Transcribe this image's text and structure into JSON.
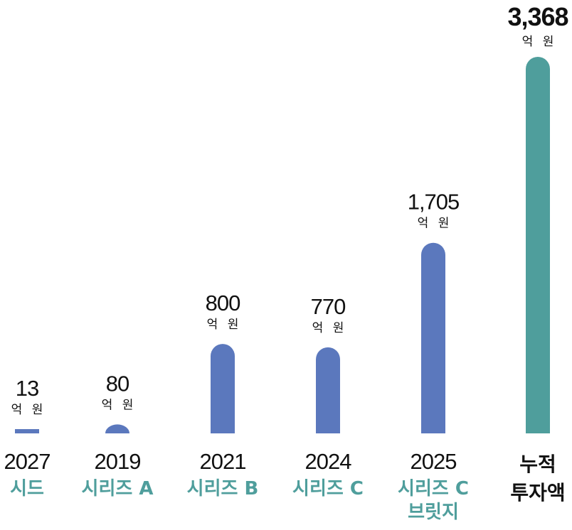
{
  "chart_data": {
    "type": "bar",
    "unit": "억 원",
    "categories": [
      {
        "year": "2027",
        "label": [
          "시드"
        ],
        "value": 13,
        "value_label": "13"
      },
      {
        "year": "2019",
        "label": [
          "시리즈 A"
        ],
        "value": 80,
        "value_label": "80"
      },
      {
        "year": "2021",
        "label": [
          "시리즈 B"
        ],
        "value": 800,
        "value_label": "800"
      },
      {
        "year": "2024",
        "label": [
          "시리즈 C"
        ],
        "value": 770,
        "value_label": "770"
      },
      {
        "year": "2025",
        "label": [
          "시리즈 C",
          "브릿지"
        ],
        "value": 1705,
        "value_label": "1,705"
      }
    ],
    "total": {
      "label": [
        "누적",
        "투자액"
      ],
      "value": 3368,
      "value_label": "3,368"
    },
    "colors": {
      "round_bar": "#5b78bd",
      "total_bar": "#4f9e9c",
      "label_accent": "#4f9e9c",
      "text": "#111111"
    }
  }
}
